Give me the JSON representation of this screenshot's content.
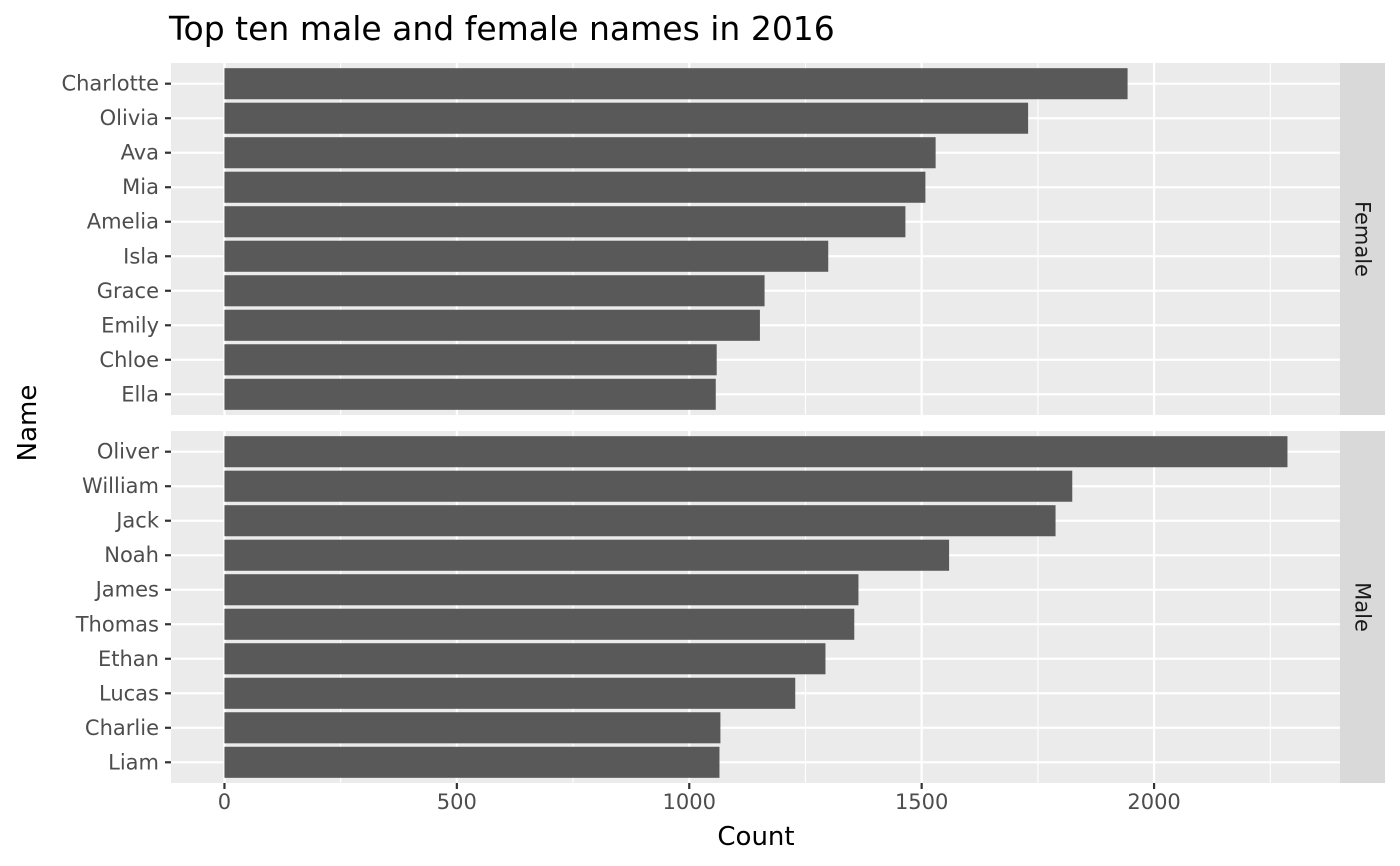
{
  "chart_data": {
    "type": "bar",
    "orientation": "horizontal",
    "title": "Top ten male and female names in 2016",
    "xlabel": "Count",
    "ylabel": "Name",
    "xlim": [
      -115,
      2400
    ],
    "xticks": [
      0,
      500,
      1000,
      1500,
      2000
    ],
    "xtick_labels": [
      "0",
      "500",
      "1000",
      "1500",
      "2000"
    ],
    "grid": true,
    "colors": {
      "bar": "#595959",
      "panel_background": "#ebebeb",
      "strip_background": "#d9d9d9",
      "grid_line": "#ffffff"
    },
    "facets": [
      {
        "strip_label": "Female",
        "categories": [
          "Charlotte",
          "Olivia",
          "Ava",
          "Mia",
          "Amelia",
          "Isla",
          "Grace",
          "Emily",
          "Chloe",
          "Ella"
        ],
        "values": [
          1943,
          1729,
          1530,
          1508,
          1465,
          1299,
          1162,
          1152,
          1059,
          1057
        ]
      },
      {
        "strip_label": "Male",
        "categories": [
          "Oliver",
          "William",
          "Jack",
          "Noah",
          "James",
          "Thomas",
          "Ethan",
          "Lucas",
          "Charlie",
          "Liam"
        ],
        "values": [
          2287,
          1824,
          1788,
          1559,
          1364,
          1355,
          1293,
          1228,
          1067,
          1065
        ]
      }
    ]
  }
}
